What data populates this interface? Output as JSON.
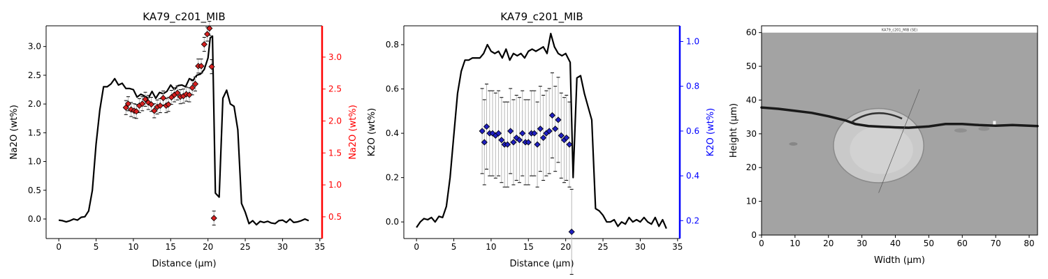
{
  "chart_data": [
    {
      "type": "line",
      "title": "KA79_c201_MIB",
      "xlabel": "Distance (µm)",
      "ylabel": "Na2O (wt%)",
      "xlim": [
        -1.7,
        35.3
      ],
      "ylim": [
        -0.34,
        3.36
      ],
      "xticks": [
        0,
        5,
        10,
        15,
        20,
        25,
        30,
        35
      ],
      "yticks": [
        0.0,
        0.5,
        1.0,
        1.5,
        2.0,
        2.5,
        3.0
      ],
      "ytick_labels": [
        "0.0",
        "0.5",
        "1.0",
        "1.5",
        "2.0",
        "2.5",
        "3.0"
      ],
      "profile": {
        "x": [
          0,
          0.5,
          1,
          1.5,
          2,
          2.5,
          3,
          3.5,
          4,
          4.5,
          5,
          5.5,
          6,
          6.5,
          7,
          7.5,
          8,
          8.5,
          9,
          9.5,
          10,
          10.5,
          11,
          11.5,
          12,
          12.5,
          13,
          13.5,
          14,
          14.5,
          15,
          15.5,
          16,
          16.5,
          17,
          17.5,
          18,
          18.5,
          19,
          19.5,
          20,
          20.3,
          20.6,
          21,
          21.5,
          22,
          22.5,
          23,
          23.5,
          24,
          24.5,
          25,
          25.5,
          26,
          26.5,
          27,
          27.5,
          28,
          28.5,
          29,
          29.5,
          30,
          30.5,
          31,
          31.5,
          32,
          32.5,
          33,
          33.5
        ],
        "y": [
          -0.02,
          -0.03,
          -0.05,
          -0.03,
          0.0,
          -0.02,
          0.03,
          0.04,
          0.14,
          0.5,
          1.3,
          1.9,
          2.3,
          2.3,
          2.35,
          2.44,
          2.33,
          2.36,
          2.27,
          2.27,
          2.25,
          2.12,
          2.17,
          2.14,
          2.1,
          2.22,
          2.1,
          2.2,
          2.18,
          2.22,
          2.33,
          2.25,
          2.32,
          2.33,
          2.3,
          2.44,
          2.41,
          2.5,
          2.52,
          2.6,
          2.8,
          3.15,
          3.18,
          0.45,
          0.38,
          2.1,
          2.24,
          2.0,
          1.96,
          1.55,
          0.27,
          0.12,
          -0.08,
          -0.03,
          -0.1,
          -0.04,
          -0.06,
          -0.04,
          -0.07,
          -0.08,
          -0.03,
          -0.02,
          -0.06,
          0.0,
          -0.06,
          -0.05,
          -0.03,
          0.0,
          -0.03
        ]
      },
      "right_axis": {
        "ylabel": "Na2O (wt%)",
        "color": "#ff0000",
        "ylim": [
          0.16,
          3.49
        ],
        "ticks": [
          0.5,
          1.0,
          1.5,
          2.0,
          2.5,
          3.0
        ],
        "tick_labels": [
          "0.5",
          "1.0",
          "1.5",
          "2.0",
          "2.5",
          "3.0"
        ]
      },
      "points": {
        "marker_color": "#d62020",
        "x": [
          9.0,
          9.3,
          9.7,
          10.1,
          10.4,
          10.8,
          11.2,
          11.6,
          12.0,
          12.4,
          12.8,
          13.2,
          13.6,
          14.0,
          14.4,
          14.7,
          15.1,
          15.5,
          15.9,
          16.3,
          16.7,
          17.1,
          17.5,
          17.9,
          18.3,
          18.7,
          19.1,
          19.5,
          19.9,
          20.2,
          20.5,
          20.8
        ],
        "y": [
          2.21,
          2.27,
          2.18,
          2.16,
          2.15,
          2.24,
          2.27,
          2.34,
          2.29,
          2.26,
          2.16,
          2.22,
          2.24,
          2.36,
          2.24,
          2.26,
          2.37,
          2.41,
          2.44,
          2.38,
          2.39,
          2.42,
          2.41,
          2.52,
          2.58,
          2.86,
          2.86,
          3.2,
          3.36,
          3.45,
          2.85,
          0.48
        ],
        "err": [
          0.11,
          0.11,
          0.11,
          0.11,
          0.11,
          0.11,
          0.11,
          0.11,
          0.11,
          0.11,
          0.11,
          0.11,
          0.11,
          0.11,
          0.11,
          0.11,
          0.11,
          0.11,
          0.11,
          0.11,
          0.11,
          0.11,
          0.11,
          0.11,
          0.11,
          0.11,
          0.11,
          0.11,
          0.11,
          0.11,
          0.11,
          0.11
        ]
      }
    },
    {
      "type": "line",
      "title": "KA79_c201_MIB",
      "xlabel": "Distance (µm)",
      "ylabel": "K2O (wt%)",
      "xlim": [
        -1.7,
        35.3
      ],
      "ylim": [
        -0.075,
        0.885
      ],
      "xticks": [
        0,
        5,
        10,
        15,
        20,
        25,
        30,
        35
      ],
      "yticks": [
        0.0,
        0.2,
        0.4,
        0.6,
        0.8
      ],
      "ytick_labels": [
        "0.0",
        "0.2",
        "0.4",
        "0.6",
        "0.8"
      ],
      "profile": {
        "x": [
          0,
          0.5,
          1,
          1.5,
          2,
          2.5,
          3,
          3.5,
          4,
          4.5,
          5,
          5.5,
          6,
          6.5,
          7,
          7.5,
          8,
          8.5,
          9,
          9.5,
          10,
          10.5,
          11,
          11.5,
          12,
          12.5,
          13,
          13.5,
          14,
          14.5,
          15,
          15.5,
          16,
          16.5,
          17,
          17.5,
          18,
          18.5,
          19,
          19.5,
          20,
          20.3,
          20.6,
          21,
          21.5,
          22,
          22.5,
          23,
          23.5,
          24,
          24.5,
          25,
          25.5,
          26,
          26.5,
          27,
          27.5,
          28,
          28.5,
          29,
          29.5,
          30,
          30.5,
          31,
          31.5,
          32,
          32.5,
          33,
          33.5
        ],
        "y": [
          -0.025,
          0.0,
          0.015,
          0.01,
          0.02,
          0.0,
          0.025,
          0.02,
          0.07,
          0.2,
          0.39,
          0.58,
          0.68,
          0.73,
          0.73,
          0.74,
          0.74,
          0.74,
          0.76,
          0.8,
          0.77,
          0.76,
          0.77,
          0.74,
          0.78,
          0.73,
          0.76,
          0.75,
          0.76,
          0.74,
          0.77,
          0.78,
          0.77,
          0.78,
          0.79,
          0.76,
          0.85,
          0.79,
          0.76,
          0.75,
          0.76,
          0.74,
          0.72,
          0.2,
          0.65,
          0.66,
          0.58,
          0.52,
          0.46,
          0.06,
          0.05,
          0.03,
          0.0,
          0.0,
          0.01,
          -0.02,
          0.0,
          -0.01,
          0.02,
          0.0,
          0.01,
          0.0,
          0.02,
          0.0,
          -0.01,
          0.02,
          -0.02,
          0.01,
          -0.03
        ]
      },
      "right_axis": {
        "ylabel": "K2O (wt%)",
        "color": "#0000ff",
        "ylim": [
          0.12,
          1.07
        ],
        "ticks": [
          0.2,
          0.4,
          0.6,
          0.8,
          1.0
        ],
        "tick_labels": [
          "0.2",
          "0.4",
          "0.6",
          "0.8",
          "1.0"
        ]
      },
      "points": {
        "marker_color": "#1f1fc0",
        "x": [
          8.8,
          9.1,
          9.4,
          9.8,
          10.2,
          10.6,
          11.0,
          11.4,
          11.8,
          12.2,
          12.6,
          13.0,
          13.4,
          13.8,
          14.2,
          14.6,
          15.0,
          15.4,
          15.8,
          16.2,
          16.6,
          17.0,
          17.4,
          17.8,
          18.2,
          18.6,
          19.0,
          19.4,
          19.8,
          20.1,
          20.5,
          20.8
        ],
        "y": [
          0.6,
          0.55,
          0.62,
          0.59,
          0.59,
          0.58,
          0.59,
          0.56,
          0.54,
          0.54,
          0.6,
          0.55,
          0.57,
          0.56,
          0.59,
          0.55,
          0.55,
          0.59,
          0.59,
          0.54,
          0.61,
          0.57,
          0.59,
          0.6,
          0.67,
          0.61,
          0.65,
          0.58,
          0.56,
          0.57,
          0.54,
          0.15
        ],
        "err": [
          0.19,
          0.19,
          0.19,
          0.19,
          0.19,
          0.19,
          0.19,
          0.19,
          0.19,
          0.19,
          0.19,
          0.19,
          0.19,
          0.19,
          0.19,
          0.19,
          0.19,
          0.19,
          0.19,
          0.19,
          0.19,
          0.19,
          0.19,
          0.19,
          0.19,
          0.19,
          0.19,
          0.19,
          0.19,
          0.19,
          0.19,
          0.19
        ]
      }
    },
    {
      "type": "image",
      "title": "",
      "xlabel": "Width (µm)",
      "ylabel": "Height (µm)",
      "xlim": [
        0,
        82.5
      ],
      "ylim": [
        0,
        62
      ],
      "xticks": [
        0,
        10,
        20,
        30,
        40,
        50,
        60,
        70,
        80
      ],
      "yticks": [
        0,
        10,
        20,
        30,
        40,
        50,
        60
      ],
      "image_caption": "KA79_c201_MIB (SE)",
      "image_top_um": 60,
      "transect_um": {
        "x1": 35,
        "y1": 12.5,
        "x2": 47.2,
        "y2": 43.2
      },
      "background_color": "#a3a3a3",
      "inclusion": {
        "cx_um": 35,
        "cy_um": 26.5,
        "rx_um": 13.5,
        "ry_um": 11
      }
    }
  ]
}
